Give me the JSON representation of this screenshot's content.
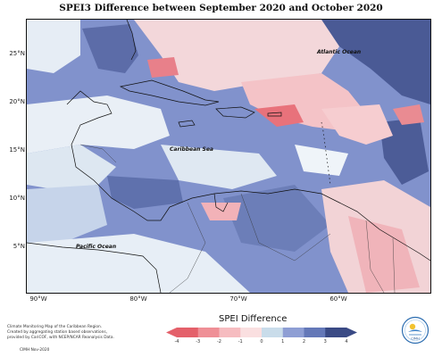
{
  "title": "SPEI3 Difference between September 2020 and October 2020",
  "map": {
    "lat_ticks": [
      {
        "label": "25°N",
        "lat": 25
      },
      {
        "label": "20°N",
        "lat": 20
      },
      {
        "label": "15°N",
        "lat": 15
      },
      {
        "label": "10°N",
        "lat": 10
      },
      {
        "label": "5°N",
        "lat": 5
      }
    ],
    "lon_ticks": [
      {
        "label": "90°W",
        "lon": -90
      },
      {
        "label": "80°W",
        "lon": -80
      },
      {
        "label": "70°W",
        "lon": -70
      },
      {
        "label": "60°W",
        "lon": -60
      }
    ],
    "region_labels": {
      "atlantic": "Atlantic Ocean",
      "caribbean": "Caribbean Sea",
      "pacific": "Pacific Ocean"
    }
  },
  "legend": {
    "title": "SPEI Difference",
    "ticks": [
      "-4",
      "-3",
      "-2",
      "-1",
      "0",
      "1",
      "2",
      "3",
      "4"
    ],
    "colors": [
      "#e4606a",
      "#ef8f96",
      "#f6bcc0",
      "#fadfe0",
      "#edf3f8",
      "#c9dcea",
      "#8e9ed4",
      "#6478b8",
      "#3a4a85"
    ]
  },
  "credits": {
    "lines": [
      "Climate Monitoring Map of the Caribbean Region.",
      "Created by aggregating station based observations,",
      "provided by CariCOF, with NCEP/NCAR Reanalysis Data."
    ],
    "footer": "CIMH Nov-2020"
  },
  "logo": {
    "text": "CIMH",
    "icon": "cimh-logo-icon"
  }
}
